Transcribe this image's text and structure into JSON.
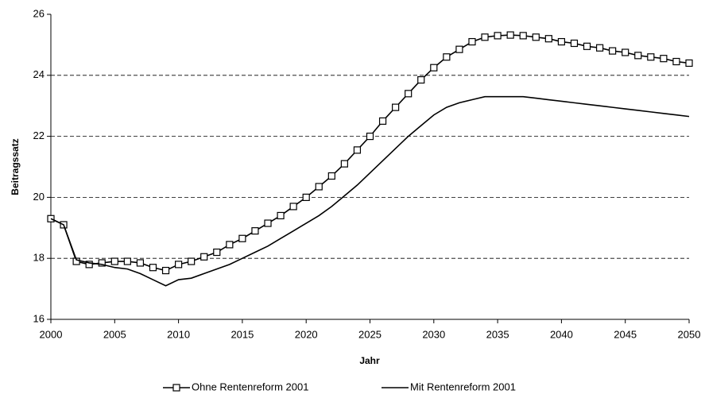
{
  "chart_data": {
    "type": "line",
    "xlabel": "Jahr",
    "ylabel": "Beitragssatz",
    "x": [
      2000,
      2001,
      2002,
      2003,
      2004,
      2005,
      2006,
      2007,
      2008,
      2009,
      2010,
      2011,
      2012,
      2013,
      2014,
      2015,
      2016,
      2017,
      2018,
      2019,
      2020,
      2021,
      2022,
      2023,
      2024,
      2025,
      2026,
      2027,
      2028,
      2029,
      2030,
      2031,
      2032,
      2033,
      2034,
      2035,
      2036,
      2037,
      2038,
      2039,
      2040,
      2041,
      2042,
      2043,
      2044,
      2045,
      2046,
      2047,
      2048,
      2049,
      2050
    ],
    "series": [
      {
        "name": "Ohne Rentenreform 2001",
        "color": "#000000",
        "marker": "square",
        "values": [
          19.3,
          19.1,
          17.9,
          17.8,
          17.85,
          17.9,
          17.9,
          17.85,
          17.7,
          17.6,
          17.8,
          17.9,
          18.05,
          18.2,
          18.45,
          18.65,
          18.9,
          19.15,
          19.4,
          19.7,
          20.0,
          20.35,
          20.7,
          21.1,
          21.55,
          22.0,
          22.5,
          22.95,
          23.4,
          23.85,
          24.25,
          24.6,
          24.85,
          25.1,
          25.25,
          25.3,
          25.32,
          25.3,
          25.25,
          25.2,
          25.1,
          25.05,
          24.95,
          24.9,
          24.8,
          24.75,
          24.65,
          24.6,
          24.55,
          24.45,
          24.4
        ]
      },
      {
        "name": "Mit Rentenreform 2001",
        "color": "#000000",
        "values": [
          19.3,
          19.1,
          17.95,
          17.85,
          17.8,
          17.7,
          17.65,
          17.5,
          17.3,
          17.1,
          17.3,
          17.35,
          17.5,
          17.65,
          17.8,
          18.0,
          18.2,
          18.4,
          18.65,
          18.9,
          19.15,
          19.4,
          19.7,
          20.05,
          20.4,
          20.8,
          21.2,
          21.6,
          22.0,
          22.35,
          22.7,
          22.95,
          23.1,
          23.2,
          23.3,
          23.3,
          23.3,
          23.3,
          23.25,
          23.2,
          23.15,
          23.1,
          23.05,
          23.0,
          22.95,
          22.9,
          22.85,
          22.8,
          22.75,
          22.7,
          22.65
        ]
      }
    ],
    "xlim": [
      2000,
      2050
    ],
    "xticks": [
      2000,
      2005,
      2010,
      2015,
      2020,
      2025,
      2030,
      2035,
      2040,
      2045,
      2050
    ],
    "ylim": [
      16,
      26
    ],
    "yticks": [
      16,
      18,
      20,
      22,
      24,
      26
    ],
    "grid": true,
    "legend": "bottom"
  }
}
